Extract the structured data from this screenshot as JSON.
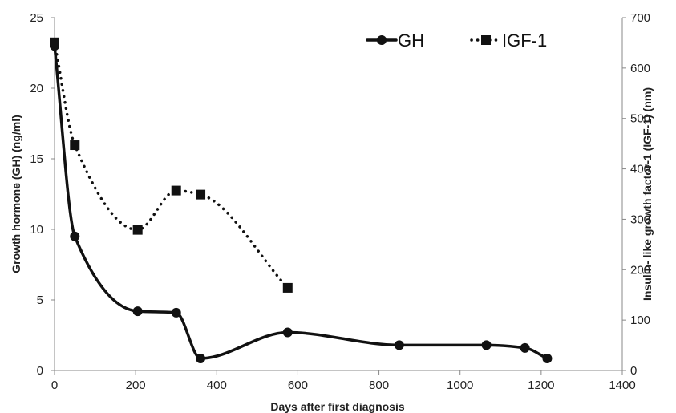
{
  "chart_data": {
    "type": "line",
    "title": "",
    "xlabel": "Days after first diagnosis",
    "ylabel_left": "Growth hormone (GH) (ng/ml)",
    "ylabel_right": "Insulin- like growth factor-1 (IGF-1) (nm)",
    "xlim": [
      0,
      1400
    ],
    "ylim_left": [
      0,
      25
    ],
    "ylim_right": [
      0,
      700
    ],
    "x_ticks": [
      0,
      200,
      400,
      600,
      800,
      1000,
      1200,
      1400
    ],
    "y_left_ticks": [
      0,
      5,
      10,
      15,
      20,
      25
    ],
    "y_right_ticks": [
      0,
      100,
      200,
      300,
      400,
      500,
      600,
      700
    ],
    "grid": false,
    "legend_position": "top-right",
    "series": [
      {
        "name": "GH",
        "axis": "left",
        "style": "solid",
        "marker": "circle",
        "color": "#111111",
        "x": [
          0,
          50,
          205,
          300,
          360,
          575,
          850,
          1065,
          1160,
          1215
        ],
        "y": [
          23.0,
          9.5,
          4.2,
          4.1,
          0.85,
          2.7,
          1.8,
          1.8,
          1.6,
          0.85
        ]
      },
      {
        "name": "IGF-1",
        "axis": "right",
        "style": "dotted",
        "marker": "square",
        "color": "#111111",
        "x": [
          0,
          50,
          205,
          300,
          360,
          575
        ],
        "y": [
          651,
          447,
          279,
          357,
          349,
          164
        ]
      }
    ]
  }
}
